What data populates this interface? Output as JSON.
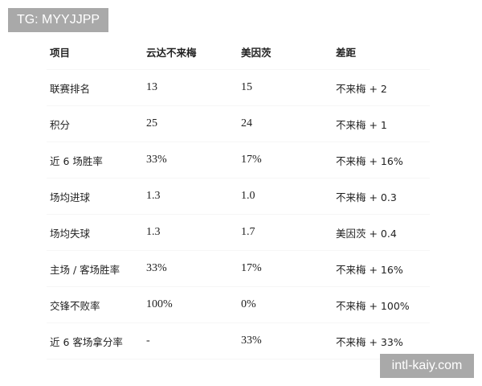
{
  "watermarks": {
    "top_left": "TG: MYYJJPP",
    "bottom_right": "intl-kaiy.com"
  },
  "table": {
    "headers": [
      "项目",
      "云达不来梅",
      "美因茨",
      "差距"
    ],
    "rows": [
      [
        "联赛排名",
        "13",
        "15",
        "不来梅 + 2"
      ],
      [
        "积分",
        "25",
        "24",
        "不来梅 + 1"
      ],
      [
        "近 6 场胜率",
        "33%",
        "17%",
        "不来梅 + 16%"
      ],
      [
        "场均进球",
        "1.3",
        "1.0",
        "不来梅 + 0.3"
      ],
      [
        "场均失球",
        "1.3",
        "1.7",
        "美因茨 + 0.4"
      ],
      [
        "主场 / 客场胜率",
        "33%",
        "17%",
        "不来梅 + 16%"
      ],
      [
        "交锋不败率",
        "100%",
        "0%",
        "不来梅 + 100%"
      ],
      [
        "近 6 客场拿分率",
        "-",
        "33%",
        "不来梅 + 33%"
      ]
    ]
  }
}
